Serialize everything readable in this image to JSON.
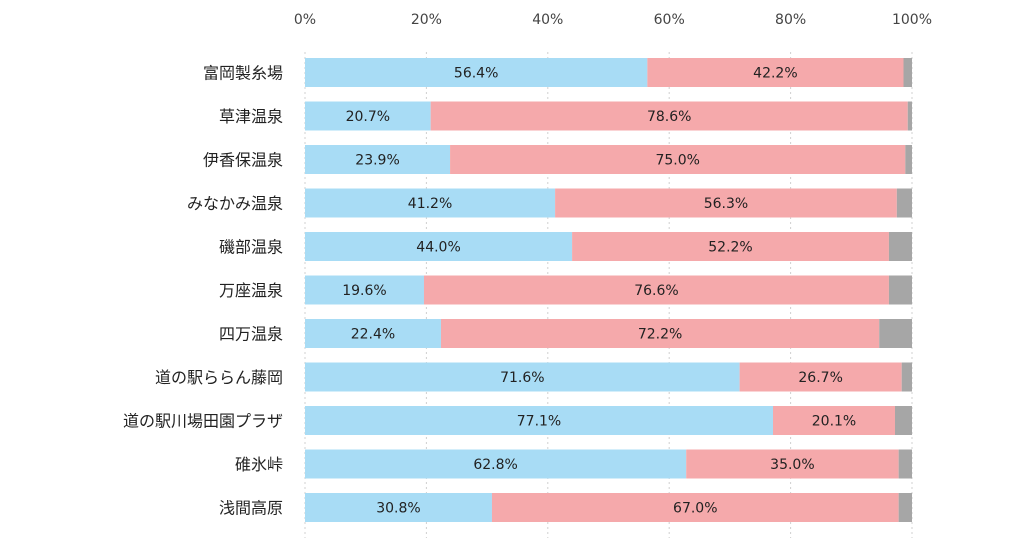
{
  "chart_data": {
    "type": "bar",
    "orientation": "horizontal",
    "stacked": true,
    "percent_axis": true,
    "xlim": [
      0,
      100
    ],
    "ticks": [
      "0%",
      "20%",
      "40%",
      "60%",
      "80%",
      "100%"
    ],
    "tick_values": [
      0,
      20,
      40,
      60,
      80,
      100
    ],
    "categories": [
      "富岡製糸場",
      "草津温泉",
      "伊香保温泉",
      "みなかみ温泉",
      "磯部温泉",
      "万座温泉",
      "四万温泉",
      "道の駅ららん藤岡",
      "道の駅川場田園プラザ",
      "碓氷峠",
      "浅間高原"
    ],
    "series": [
      {
        "color": "#a8dcf5",
        "values": [
          56.4,
          20.7,
          23.9,
          41.2,
          44.0,
          19.6,
          22.4,
          71.6,
          77.1,
          62.8,
          30.8
        ],
        "labels": [
          "56.4%",
          "20.7%",
          "23.9%",
          "41.2%",
          "44.0%",
          "19.6%",
          "22.4%",
          "71.6%",
          "77.1%",
          "62.8%",
          "30.8%"
        ]
      },
      {
        "color": "#f5a9ab",
        "values": [
          42.2,
          78.6,
          75.0,
          56.3,
          52.2,
          76.6,
          72.2,
          26.7,
          20.1,
          35.0,
          67.0
        ],
        "labels": [
          "42.2%",
          "78.6%",
          "75.0%",
          "56.3%",
          "52.2%",
          "76.6%",
          "72.2%",
          "26.7%",
          "20.1%",
          "35.0%",
          "67.0%"
        ]
      },
      {
        "color": "#a6a6a6",
        "values": [
          1.4,
          0.7,
          1.1,
          2.5,
          3.8,
          3.8,
          5.4,
          1.7,
          2.8,
          2.2,
          2.2
        ]
      }
    ],
    "grid": true,
    "gridline_color": "#d0d0d0",
    "legend": "none"
  }
}
